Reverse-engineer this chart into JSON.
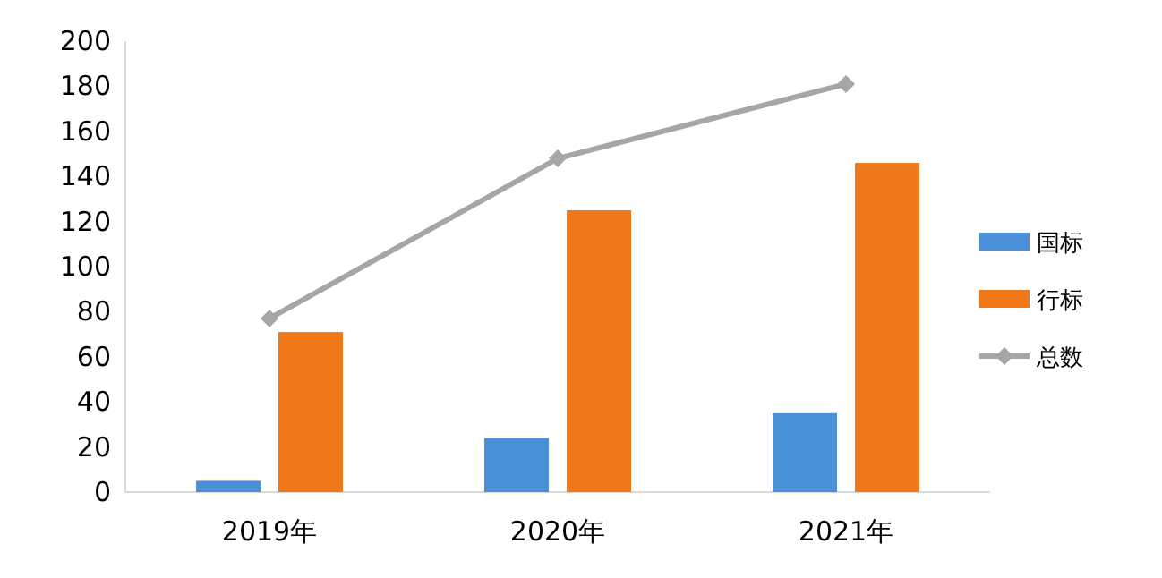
{
  "chart_data": {
    "type": "bar",
    "categories": [
      "2019年",
      "2020年",
      "2021年"
    ],
    "series": [
      {
        "name": "国标",
        "color": "#4a90d9",
        "values": [
          5,
          24,
          35
        ]
      },
      {
        "name": "行标",
        "color": "#f07818",
        "values": [
          71,
          125,
          146
        ]
      },
      {
        "name": "总数",
        "type": "line",
        "color": "#a6a6a6",
        "marker": "diamond",
        "values": [
          77,
          148,
          181
        ]
      }
    ],
    "ylim": [
      0,
      200
    ],
    "yticks": [
      0,
      20,
      40,
      60,
      80,
      100,
      120,
      140,
      160,
      180,
      200
    ],
    "legend": "right"
  }
}
